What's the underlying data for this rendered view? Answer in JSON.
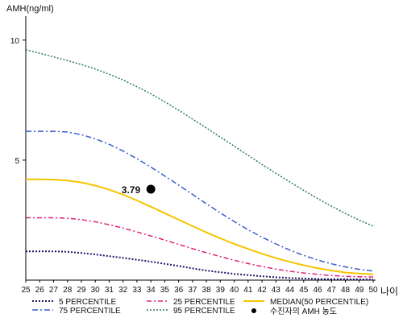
{
  "chart_data": {
    "type": "line",
    "ylabel": "AMH(ng/ml)",
    "xlabel": "나이",
    "xlim": [
      25,
      50
    ],
    "ylim": [
      0,
      11
    ],
    "x_ticks": [
      25,
      26,
      27,
      28,
      29,
      30,
      31,
      32,
      33,
      34,
      35,
      36,
      37,
      38,
      39,
      40,
      41,
      42,
      43,
      44,
      45,
      46,
      47,
      48,
      49,
      50
    ],
    "y_ticks": [
      5,
      10
    ],
    "grid": false,
    "x": [
      25,
      26,
      27,
      28,
      29,
      30,
      31,
      32,
      33,
      34,
      35,
      36,
      37,
      38,
      39,
      40,
      41,
      42,
      43,
      44,
      45,
      46,
      47,
      48,
      49,
      50
    ],
    "series": [
      {
        "name": "5 PERCENTILE",
        "color": "#1a1a66",
        "dash": "2,2",
        "width": 2,
        "values": [
          1.2,
          1.2,
          1.2,
          1.18,
          1.13,
          1.07,
          1.0,
          0.93,
          0.85,
          0.77,
          0.68,
          0.59,
          0.49,
          0.4,
          0.33,
          0.26,
          0.21,
          0.16,
          0.12,
          0.09,
          0.07,
          0.05,
          0.04,
          0.04,
          0.03,
          0.03
        ]
      },
      {
        "name": "25 PERCENTILE",
        "color": "#e0207a",
        "dash": "6,3,2,3",
        "width": 1.5,
        "values": [
          2.6,
          2.6,
          2.6,
          2.58,
          2.52,
          2.43,
          2.31,
          2.17,
          2.01,
          1.84,
          1.67,
          1.49,
          1.31,
          1.14,
          0.98,
          0.83,
          0.69,
          0.57,
          0.46,
          0.37,
          0.3,
          0.24,
          0.19,
          0.16,
          0.14,
          0.13
        ]
      },
      {
        "name": "MEDIAN(50 PERCENTILE)",
        "color": "#f5c400",
        "dash": "",
        "width": 2,
        "values": [
          4.2,
          4.2,
          4.19,
          4.15,
          4.07,
          3.94,
          3.77,
          3.56,
          3.32,
          3.06,
          2.79,
          2.52,
          2.25,
          1.99,
          1.74,
          1.51,
          1.3,
          1.1,
          0.92,
          0.76,
          0.62,
          0.5,
          0.4,
          0.32,
          0.27,
          0.24
        ]
      },
      {
        "name": "75 PERCENTILE",
        "color": "#3a5dc9",
        "dash": "7,3,2,3",
        "width": 1.5,
        "values": [
          6.2,
          6.2,
          6.2,
          6.17,
          6.06,
          5.89,
          5.66,
          5.38,
          5.06,
          4.71,
          4.34,
          3.96,
          3.57,
          3.18,
          2.8,
          2.44,
          2.1,
          1.79,
          1.51,
          1.25,
          1.03,
          0.84,
          0.68,
          0.55,
          0.45,
          0.38
        ]
      },
      {
        "name": "95 PERCENTILE",
        "color": "#2e7d4f",
        "dash": "2,2",
        "width": 1.5,
        "values": [
          9.6,
          9.45,
          9.3,
          9.15,
          8.98,
          8.8,
          8.58,
          8.34,
          8.06,
          7.76,
          7.43,
          7.08,
          6.71,
          6.34,
          5.96,
          5.58,
          5.2,
          4.82,
          4.45,
          4.09,
          3.74,
          3.4,
          3.08,
          2.78,
          2.5,
          2.25
        ]
      }
    ],
    "point": {
      "name": "수진자의 AMH 농도",
      "x": 34,
      "y": 3.79,
      "label": "3.79",
      "color": "#000000"
    },
    "legend": [
      {
        "name": "5 PERCENTILE",
        "color": "#1a1a66",
        "dash": "2,2",
        "width": 2
      },
      {
        "name": "25 PERCENTILE",
        "color": "#e0207a",
        "dash": "6,3,2,3",
        "width": 1.5
      },
      {
        "name": "MEDIAN(50 PERCENTILE)",
        "color": "#f5c400",
        "dash": "",
        "width": 2
      },
      {
        "name": "75 PERCENTILE",
        "color": "#3a5dc9",
        "dash": "7,3,2,3",
        "width": 1.5
      },
      {
        "name": "95 PERCENTILE",
        "color": "#2e7d4f",
        "dash": "2,2",
        "width": 1.5
      },
      {
        "name": "수진자의 AMH 농도",
        "marker": "circle",
        "color": "#000000"
      }
    ]
  }
}
